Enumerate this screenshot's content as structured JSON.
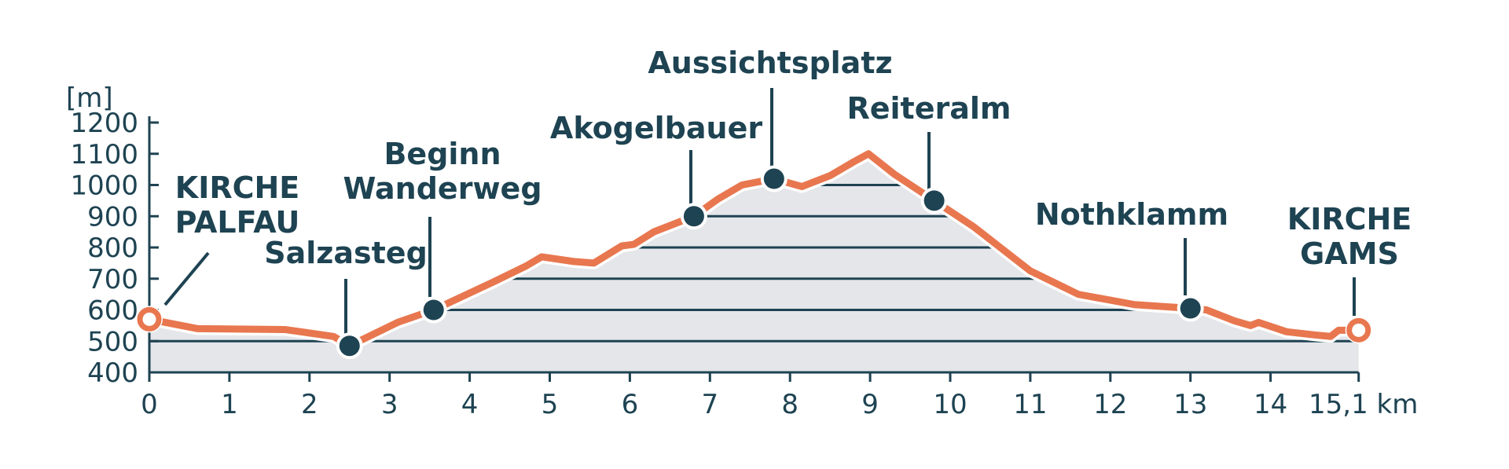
{
  "colors": {
    "profile_line": "#e8774f",
    "area_fill": "#e4e6ea",
    "text": "#1e4352",
    "axis": "#1e4352",
    "grid": "#1e4352",
    "marker": "#1e4352",
    "background": "#ffffff"
  },
  "chart_data": {
    "type": "area",
    "title": "",
    "ylabel": "[m]",
    "xlabel": "15,1 km",
    "xlim": [
      0,
      15.1
    ],
    "ylim": [
      400,
      1200
    ],
    "x_ticks": [
      0,
      1,
      2,
      3,
      4,
      5,
      6,
      7,
      8,
      9,
      10,
      11,
      12,
      13,
      14
    ],
    "x_tick_labels": [
      "0",
      "1",
      "2",
      "3",
      "4",
      "5",
      "6",
      "7",
      "8",
      "9",
      "10",
      "11",
      "12",
      "13",
      "14"
    ],
    "x_end_label": "15,1 km",
    "y_ticks": [
      400,
      500,
      600,
      700,
      800,
      900,
      1000,
      1100,
      1200
    ],
    "y_tick_labels": [
      "400",
      "500",
      "600",
      "700",
      "800",
      "900",
      "1000",
      "1100",
      "1200"
    ],
    "grid": "horizontal lines inside profile area",
    "series": [
      {
        "x": [
          0,
          0.6,
          1.7,
          2.3,
          2.5,
          3.1,
          3.55,
          4.3,
          4.7,
          4.9,
          5.3,
          5.55,
          5.9,
          6.05,
          6.3,
          6.8,
          7.1,
          7.4,
          7.8,
          8.15,
          8.5,
          8.8,
          8.98,
          9.3,
          9.8,
          10.3,
          11.0,
          11.6,
          12.3,
          13.0,
          13.2,
          13.55,
          13.75,
          13.85,
          14.2,
          14.55,
          14.75,
          14.85,
          15.1
        ],
        "y": [
          570,
          540,
          537,
          515,
          485,
          560,
          600,
          690,
          740,
          770,
          755,
          750,
          805,
          810,
          850,
          900,
          955,
          1000,
          1020,
          995,
          1030,
          1075,
          1100,
          1035,
          950,
          865,
          725,
          650,
          617,
          605,
          600,
          565,
          550,
          560,
          530,
          520,
          515,
          535,
          535
        ]
      }
    ],
    "annotations": [
      {
        "label": "KIRCHE PALFAU",
        "lines": [
          "KIRCHE",
          "PALFAU"
        ],
        "x": 0,
        "y": 570,
        "marker": "ring"
      },
      {
        "label": "Salzasteg",
        "lines": [
          "Salzasteg"
        ],
        "x": 2.5,
        "y": 485,
        "marker": "dot"
      },
      {
        "label": "Beginn Wanderweg",
        "lines": [
          "Beginn",
          "Wanderweg"
        ],
        "x": 3.55,
        "y": 600,
        "marker": "dot"
      },
      {
        "label": "Akogelbauer",
        "lines": [
          "Akogelbauer"
        ],
        "x": 6.8,
        "y": 900,
        "marker": "dot"
      },
      {
        "label": "Aussichtsplatz",
        "lines": [
          "Aussichtsplatz"
        ],
        "x": 7.8,
        "y": 1020,
        "marker": "dot"
      },
      {
        "label": "Reiteralm",
        "lines": [
          "Reiteralm"
        ],
        "x": 9.8,
        "y": 950,
        "marker": "dot"
      },
      {
        "label": "Nothklamm",
        "lines": [
          "Nothklamm"
        ],
        "x": 13.0,
        "y": 605,
        "marker": "dot"
      },
      {
        "label": "KIRCHE GAMS",
        "lines": [
          "KIRCHE",
          "GAMS"
        ],
        "x": 15.1,
        "y": 535,
        "marker": "ring"
      }
    ]
  }
}
